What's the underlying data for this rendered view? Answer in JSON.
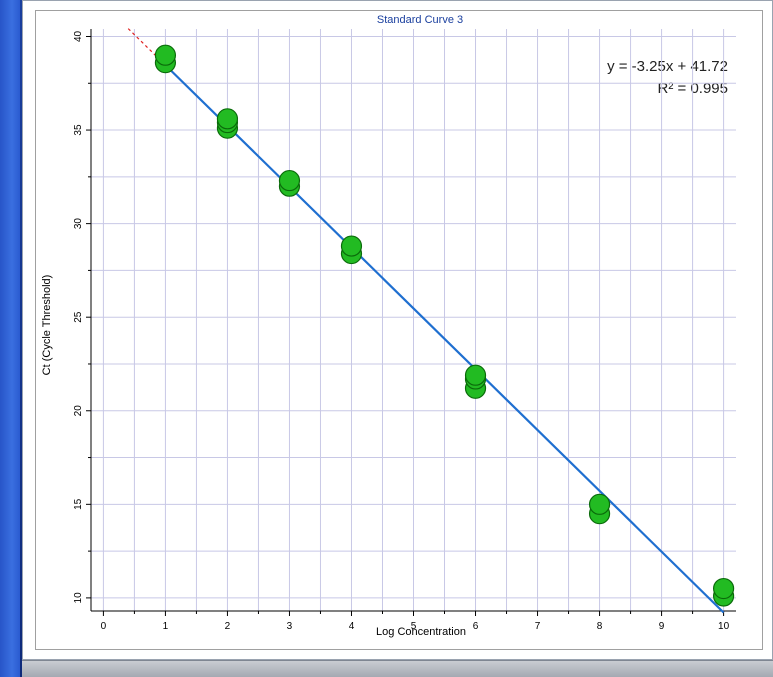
{
  "chart_data": {
    "type": "scatter",
    "title": "Standard Curve 3",
    "xlabel": "Log Concentration",
    "ylabel": "Ct (Cycle Threshold)",
    "xlim": [
      -0.2,
      10.2
    ],
    "ylim": [
      9.3,
      40.4
    ],
    "xticks": [
      "0",
      "1",
      "2",
      "3",
      "4",
      "5",
      "6",
      "7",
      "8",
      "9",
      "10"
    ],
    "yticks": [
      "10",
      "15",
      "20",
      "25",
      "30",
      "35",
      "40"
    ],
    "grid": true,
    "equation": "y = -3.25x + 41.72",
    "r_squared": "R² = 0.995",
    "fit": {
      "slope": -3.25,
      "intercept": 41.72,
      "x_range": [
        1,
        10
      ],
      "extrapolate_from": 0.4
    },
    "points": [
      {
        "x": 1,
        "y": 38.6
      },
      {
        "x": 1,
        "y": 39.0
      },
      {
        "x": 2,
        "y": 35.1
      },
      {
        "x": 2,
        "y": 35.4
      },
      {
        "x": 2,
        "y": 35.6
      },
      {
        "x": 3,
        "y": 32.0
      },
      {
        "x": 3,
        "y": 32.3
      },
      {
        "x": 4,
        "y": 28.4
      },
      {
        "x": 4,
        "y": 28.8
      },
      {
        "x": 6,
        "y": 21.2
      },
      {
        "x": 6,
        "y": 21.7
      },
      {
        "x": 6,
        "y": 21.9
      },
      {
        "x": 8,
        "y": 14.5
      },
      {
        "x": 8,
        "y": 15.0
      },
      {
        "x": 10,
        "y": 10.1
      },
      {
        "x": 10,
        "y": 10.5
      }
    ],
    "colors": {
      "points": "#22bb22",
      "point_edge": "#0a6b0a",
      "fit_line": "#1f6fd0",
      "extrapolation": "#e02020",
      "grid": "#c8c8e6"
    }
  }
}
